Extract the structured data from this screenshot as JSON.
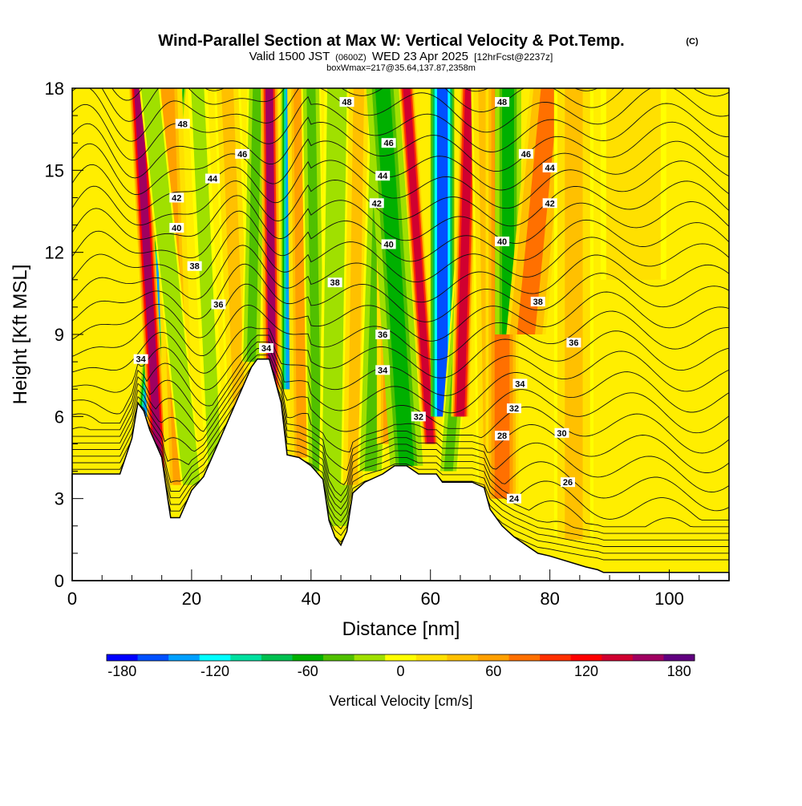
{
  "chart_data": {
    "type": "heatmap",
    "title": "Wind-Parallel Section at Max W: Vertical Velocity & Pot.Temp.",
    "title_mark": "(C)",
    "subtitle_parts": [
      "Valid 1500 JST",
      "(0600Z)",
      "WED 23 Apr 2025",
      "[12hrFcst@2237z]"
    ],
    "subtitle2": "boxWmax=217@35.64,137.87,2358m",
    "xlabel": "Distance [nm]",
    "ylabel": "Height [Kft MSL]",
    "xlim": [
      0,
      110
    ],
    "ylim": [
      0,
      18
    ],
    "x_major_ticks": [
      0,
      20,
      40,
      60,
      80,
      100
    ],
    "x_minor_step": 5,
    "y_major_ticks": [
      0,
      3,
      6,
      9,
      12,
      15,
      18
    ],
    "y_minor_step": 1,
    "colorbar": {
      "label": "Vertical Velocity [cm/s]",
      "tick_labels": [
        "-180",
        "-120",
        "-60",
        "0",
        "60",
        "120",
        "180"
      ],
      "ticks": [
        -180,
        -120,
        -60,
        0,
        60,
        120,
        180
      ],
      "range": [
        -190,
        190
      ],
      "colors": [
        "#0000ff",
        "#0050ff",
        "#00a0ff",
        "#00ffff",
        "#00e0a0",
        "#00c050",
        "#00b000",
        "#50c000",
        "#a0e000",
        "#ffff00",
        "#ffe000",
        "#ffc000",
        "#ffa000",
        "#ff7000",
        "#ff3000",
        "#ff0000",
        "#d00030",
        "#a00060",
        "#600080"
      ]
    },
    "terrain": [
      [
        0,
        3.9
      ],
      [
        8,
        3.9
      ],
      [
        10,
        5.2
      ],
      [
        11,
        6.5
      ],
      [
        12,
        6.2
      ],
      [
        13,
        5.5
      ],
      [
        15,
        4.5
      ],
      [
        16,
        3
      ],
      [
        16.5,
        2.3
      ],
      [
        18,
        2.3
      ],
      [
        20,
        3.3
      ],
      [
        22,
        3.8
      ],
      [
        24,
        4.8
      ],
      [
        26,
        5.8
      ],
      [
        28,
        6.8
      ],
      [
        30,
        7.8
      ],
      [
        31,
        8.1
      ],
      [
        33,
        8.1
      ],
      [
        35,
        6.5
      ],
      [
        36,
        4.6
      ],
      [
        38,
        4.5
      ],
      [
        40,
        4.2
      ],
      [
        42,
        3.7
      ],
      [
        43,
        2.2
      ],
      [
        44,
        1.6
      ],
      [
        45,
        1.3
      ],
      [
        46,
        1.8
      ],
      [
        47,
        3.2
      ],
      [
        49,
        3.6
      ],
      [
        52,
        3.9
      ],
      [
        54,
        4.2
      ],
      [
        56,
        4.2
      ],
      [
        58,
        3.9
      ],
      [
        61,
        3.9
      ],
      [
        62,
        3.6
      ],
      [
        67,
        3.6
      ],
      [
        69,
        3.4
      ],
      [
        70,
        2.6
      ],
      [
        72,
        2
      ],
      [
        74,
        1.6
      ],
      [
        76,
        1.3
      ],
      [
        78,
        1
      ],
      [
        80,
        0.9
      ],
      [
        86,
        0.5
      ],
      [
        88,
        0.4
      ],
      [
        89,
        0.3
      ],
      [
        110,
        0.3
      ]
    ],
    "vertical_velocity_bands": [
      {
        "x_bottom": 12.5,
        "x_top": 17.5,
        "y_bottom": 6.0,
        "w": -140,
        "width": 1.4
      },
      {
        "x_bottom": 14.5,
        "x_top": 11.0,
        "y_bottom": 4.0,
        "w": 160,
        "width": 1.3
      },
      {
        "x_bottom": 18,
        "x_top": 16,
        "y_bottom": 3.5,
        "w": 60,
        "width": 2.2
      },
      {
        "x_bottom": 20,
        "x_top": 13,
        "y_bottom": 3.5,
        "w": -30,
        "width": 1.6
      },
      {
        "x_bottom": 24,
        "x_top": 21,
        "y_bottom": 3.5,
        "w": -20,
        "width": 1.5
      },
      {
        "x_bottom": 28,
        "x_top": 26,
        "y_bottom": 6.0,
        "w": 40,
        "width": 2.0
      },
      {
        "x_bottom": 30,
        "x_top": 31,
        "y_bottom": 8.0,
        "w": -40,
        "width": 1.5
      },
      {
        "x_bottom": 33.5,
        "x_top": 33.0,
        "y_bottom": 7.0,
        "w": 150,
        "width": 1.3
      },
      {
        "x_bottom": 36.5,
        "x_top": 36.5,
        "y_bottom": 7.0,
        "w": -140,
        "width": 1.4
      },
      {
        "x_bottom": 38.5,
        "x_top": 38.0,
        "y_bottom": 4.5,
        "w": 50,
        "width": 1.8
      },
      {
        "x_bottom": 41,
        "x_top": 40,
        "y_bottom": 4.0,
        "w": -40,
        "width": 1.5
      },
      {
        "x_bottom": 44,
        "x_top": 45,
        "y_bottom": 2.0,
        "w": -30,
        "width": 2.5
      },
      {
        "x_bottom": 47,
        "x_top": 48,
        "y_bottom": 3.5,
        "w": 40,
        "width": 1.8
      },
      {
        "x_bottom": 50,
        "x_top": 52,
        "y_bottom": 4.0,
        "w": -40,
        "width": 2.0
      },
      {
        "x_bottom": 53,
        "x_top": 53,
        "y_bottom": 5.0,
        "w": 60,
        "width": 1.8
      },
      {
        "x_bottom": 56,
        "x_top": 52,
        "y_bottom": 4.2,
        "w": -60,
        "width": 2.5
      },
      {
        "x_bottom": 60.0,
        "x_top": 56.0,
        "y_bottom": 5.0,
        "w": 140,
        "width": 1.2
      },
      {
        "x_bottom": 62,
        "x_top": 62,
        "y_bottom": 6.0,
        "w": -160,
        "width": 1.8
      },
      {
        "x_bottom": 63,
        "x_top": 68,
        "y_bottom": 4.0,
        "w": -40,
        "width": 1.5
      },
      {
        "x_bottom": 65,
        "x_top": 66.5,
        "y_bottom": 6.0,
        "w": 130,
        "width": 1.4
      },
      {
        "x_bottom": 70,
        "x_top": 69,
        "y_bottom": 3.0,
        "w": 40,
        "width": 2.0
      },
      {
        "x_bottom": 72,
        "x_top": 72,
        "y_bottom": 3.0,
        "w": 80,
        "width": 2.5
      },
      {
        "x_bottom": 73,
        "x_top": 73,
        "y_bottom": 9.0,
        "w": -60,
        "width": 2.0
      },
      {
        "x_bottom": 76,
        "x_top": 80,
        "y_bottom": 9.0,
        "w": 70,
        "width": 3.0
      },
      {
        "x_bottom": 84,
        "x_top": 84,
        "y_bottom": 1.5,
        "w": 30,
        "width": 3.0
      },
      {
        "x_bottom": 94,
        "x_top": 94,
        "y_bottom": 11.0,
        "w": 25,
        "width": 5.0
      }
    ],
    "potential_temperature": {
      "contour_interval": 1,
      "label_interval": 2,
      "labels": [
        {
          "value": 48,
          "x": 18.5,
          "y": 16.7
        },
        {
          "value": 46,
          "x": 28.5,
          "y": 15.6
        },
        {
          "value": 44,
          "x": 23.5,
          "y": 14.7
        },
        {
          "value": 42,
          "x": 17.5,
          "y": 14.0
        },
        {
          "value": 40,
          "x": 17.5,
          "y": 12.9
        },
        {
          "value": 38,
          "x": 20.5,
          "y": 11.5
        },
        {
          "value": 36,
          "x": 24.5,
          "y": 10.1
        },
        {
          "value": 34,
          "x": 11.5,
          "y": 8.1
        },
        {
          "value": 34,
          "x": 32.5,
          "y": 8.5
        },
        {
          "value": 48,
          "x": 46.0,
          "y": 17.5
        },
        {
          "value": 46,
          "x": 53.0,
          "y": 16.0
        },
        {
          "value": 44,
          "x": 52.0,
          "y": 14.8
        },
        {
          "value": 42,
          "x": 51.0,
          "y": 13.8
        },
        {
          "value": 40,
          "x": 53.0,
          "y": 12.3
        },
        {
          "value": 38,
          "x": 44.0,
          "y": 10.9
        },
        {
          "value": 36,
          "x": 52.0,
          "y": 9.0
        },
        {
          "value": 34,
          "x": 52.0,
          "y": 7.7
        },
        {
          "value": 32,
          "x": 58.0,
          "y": 6.0
        },
        {
          "value": 48,
          "x": 72.0,
          "y": 17.5
        },
        {
          "value": 46,
          "x": 76.0,
          "y": 15.6
        },
        {
          "value": 44,
          "x": 80.0,
          "y": 15.1
        },
        {
          "value": 42,
          "x": 80.0,
          "y": 13.8
        },
        {
          "value": 40,
          "x": 72.0,
          "y": 12.4
        },
        {
          "value": 38,
          "x": 78.0,
          "y": 10.2
        },
        {
          "value": 36,
          "x": 84.0,
          "y": 8.7
        },
        {
          "value": 34,
          "x": 75.0,
          "y": 7.2
        },
        {
          "value": 32,
          "x": 74.0,
          "y": 6.3
        },
        {
          "value": 30,
          "x": 82.0,
          "y": 5.4
        },
        {
          "value": 28,
          "x": 72.0,
          "y": 5.3
        },
        {
          "value": 26,
          "x": 83.0,
          "y": 3.6
        },
        {
          "value": 24,
          "x": 74.0,
          "y": 3.0
        }
      ]
    },
    "grid": false,
    "legend": "bottom"
  }
}
